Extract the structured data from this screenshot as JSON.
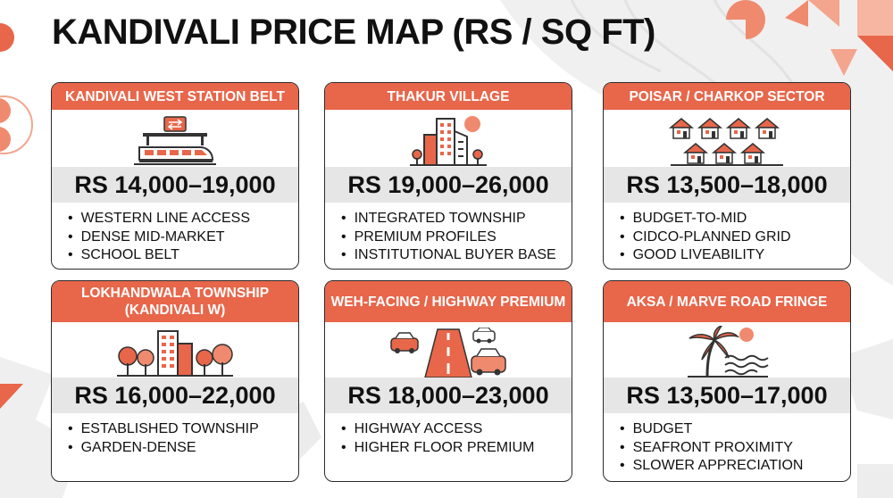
{
  "title": "KANDIVALI PRICE MAP (RS / SQ FT)",
  "colors": {
    "accent": "#e8664a",
    "price_band": "#e6e6e6",
    "text": "#111111"
  },
  "cards": [
    {
      "heading": "KANDIVALI WEST STATION BELT",
      "icon": "train-station-icon",
      "price": "RS 14,000–19,000",
      "bullets": [
        "WESTERN LINE ACCESS",
        "DENSE MID-MARKET",
        "SCHOOL BELT"
      ]
    },
    {
      "heading": "THAKUR VILLAGE",
      "icon": "city-buildings-icon",
      "price": "RS 19,000–26,000",
      "bullets": [
        "INTEGRATED TOWNSHIP",
        "PREMIUM PROFILES",
        "INSTITUTIONAL BUYER BASE"
      ]
    },
    {
      "heading": "POISAR / CHARKOP SECTOR",
      "icon": "houses-grid-icon",
      "price": "RS 13,500–18,000",
      "bullets": [
        "BUDGET-TO-MID",
        "CIDCO-PLANNED GRID",
        "GOOD LIVEABILITY"
      ]
    },
    {
      "heading": "LOKHANDWALA TOWNSHIP",
      "heading_line2": "(KANDIVALI W)",
      "icon": "township-trees-icon",
      "price": "RS 16,000–22,000",
      "bullets": [
        "ESTABLISHED TOWNSHIP",
        "GARDEN-DENSE"
      ]
    },
    {
      "heading": "WEH-FACING / HIGHWAY PREMIUM",
      "icon": "highway-cars-icon",
      "price": "RS 18,000–23,000",
      "bullets": [
        "HIGHWAY ACCESS",
        "HIGHER FLOOR PREMIUM"
      ]
    },
    {
      "heading": "AKSA / MARVE ROAD FRINGE",
      "icon": "palm-beach-icon",
      "price": "RS 13,500–17,000",
      "bullets": [
        "BUDGET",
        "SEAFRONT PROXIMITY",
        "SLOWER APPRECIATION"
      ]
    }
  ]
}
